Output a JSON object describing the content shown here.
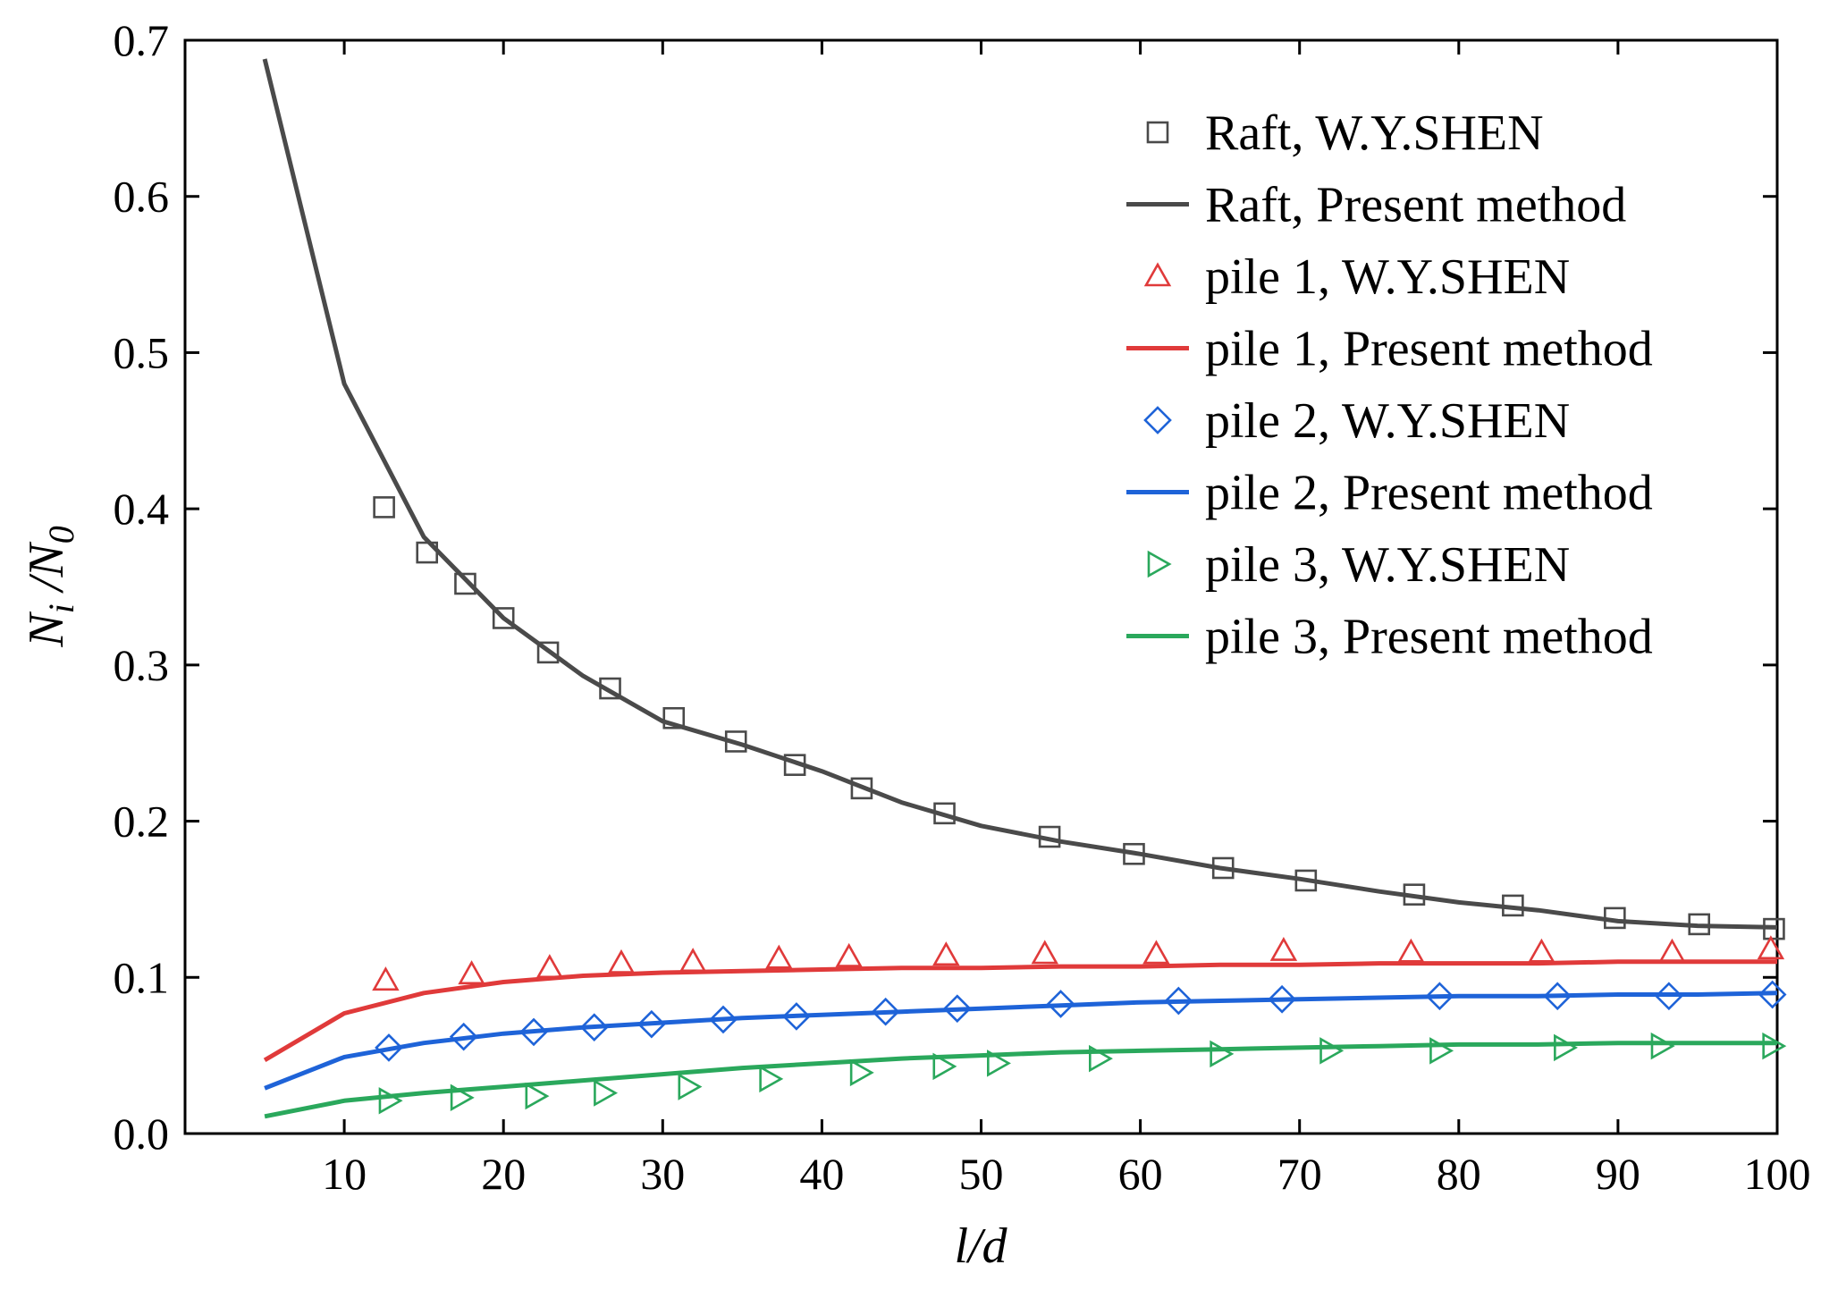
{
  "chart_data": {
    "type": "line",
    "title": "",
    "xlabel": "l/d",
    "ylabel": "N_i /N_0",
    "ylabel_parts": {
      "n1": "N",
      "sub1": "i",
      "slash": " /",
      "n2": "N",
      "sub2": "0"
    },
    "xlim": [
      0,
      100
    ],
    "ylim": [
      0,
      0.7
    ],
    "xticks": [
      10,
      20,
      30,
      40,
      50,
      60,
      70,
      80,
      90,
      100
    ],
    "yticks": [
      0.0,
      0.1,
      0.2,
      0.3,
      0.4,
      0.5,
      0.6,
      0.7
    ],
    "xtick_labels": [
      "10",
      "20",
      "30",
      "40",
      "50",
      "60",
      "70",
      "80",
      "90",
      "100"
    ],
    "ytick_labels": [
      "0.0",
      "0.1",
      "0.2",
      "0.3",
      "0.4",
      "0.5",
      "0.6",
      "0.7"
    ],
    "grid": false,
    "legend_position": "top-right",
    "series": [
      {
        "name": "Raft, W.Y.SHEN",
        "kind": "scatter",
        "marker": "square",
        "color": "#4a4a4a",
        "x": [
          12.5,
          15.2,
          17.6,
          20,
          22.8,
          26.7,
          30.7,
          34.6,
          38.3,
          42.5,
          47.7,
          54.3,
          59.6,
          65.2,
          70.4,
          77.2,
          83.4,
          89.8,
          95.1,
          99.8
        ],
        "y": [
          0.401,
          0.372,
          0.352,
          0.33,
          0.308,
          0.285,
          0.266,
          0.251,
          0.236,
          0.221,
          0.205,
          0.19,
          0.179,
          0.17,
          0.162,
          0.153,
          0.146,
          0.138,
          0.134,
          0.131
        ]
      },
      {
        "name": "Raft, Present method",
        "kind": "line",
        "color": "#4a4a4a",
        "x": [
          5,
          10,
          15,
          20,
          25,
          30,
          35,
          40,
          45,
          50,
          55,
          60,
          65,
          70,
          75,
          80,
          85,
          90,
          95,
          100
        ],
        "y": [
          0.688,
          0.48,
          0.382,
          0.33,
          0.293,
          0.264,
          0.249,
          0.232,
          0.212,
          0.197,
          0.187,
          0.179,
          0.17,
          0.163,
          0.155,
          0.148,
          0.143,
          0.136,
          0.133,
          0.132
        ]
      },
      {
        "name": "pile 1, W.Y.SHEN",
        "kind": "scatter",
        "marker": "triangle",
        "color": "#e03a3a",
        "x": [
          12.6,
          18,
          22.9,
          27.4,
          31.9,
          37.3,
          41.7,
          47.8,
          54,
          61,
          69,
          77,
          85.2,
          93.4,
          99.6
        ],
        "y": [
          0.098,
          0.102,
          0.106,
          0.109,
          0.11,
          0.112,
          0.113,
          0.114,
          0.115,
          0.115,
          0.117,
          0.116,
          0.116,
          0.116,
          0.118
        ]
      },
      {
        "name": "pile 1, Present method",
        "kind": "line",
        "color": "#e03a3a",
        "x": [
          5,
          10,
          15,
          20,
          25,
          30,
          35,
          40,
          45,
          50,
          55,
          60,
          65,
          70,
          75,
          80,
          85,
          90,
          95,
          100
        ],
        "y": [
          0.047,
          0.077,
          0.09,
          0.097,
          0.101,
          0.103,
          0.104,
          0.105,
          0.106,
          0.106,
          0.107,
          0.107,
          0.108,
          0.108,
          0.109,
          0.109,
          0.109,
          0.11,
          0.11,
          0.11
        ]
      },
      {
        "name": "pile 2, W.Y.SHEN",
        "kind": "scatter",
        "marker": "diamond",
        "color": "#1e63d8",
        "x": [
          12.8,
          17.5,
          21.9,
          25.7,
          29.3,
          33.8,
          38.4,
          44,
          48.5,
          55,
          62.4,
          68.9,
          78.8,
          86.2,
          93.2,
          99.7
        ],
        "y": [
          0.055,
          0.062,
          0.065,
          0.068,
          0.07,
          0.073,
          0.075,
          0.078,
          0.08,
          0.083,
          0.085,
          0.086,
          0.088,
          0.088,
          0.088,
          0.089
        ]
      },
      {
        "name": "pile 2, Present method",
        "kind": "line",
        "color": "#1e63d8",
        "x": [
          5,
          10,
          15,
          20,
          25,
          30,
          35,
          40,
          45,
          50,
          55,
          60,
          65,
          70,
          75,
          80,
          85,
          90,
          95,
          100
        ],
        "y": [
          0.029,
          0.049,
          0.058,
          0.064,
          0.068,
          0.071,
          0.074,
          0.076,
          0.078,
          0.08,
          0.082,
          0.084,
          0.085,
          0.086,
          0.087,
          0.088,
          0.088,
          0.089,
          0.089,
          0.09
        ]
      },
      {
        "name": "pile 3, W.Y.SHEN",
        "kind": "scatter",
        "marker": "triangle-right",
        "color": "#2aa85c",
        "x": [
          12.8,
          17.3,
          22,
          26.3,
          31.6,
          36.7,
          42.4,
          47.6,
          51,
          57.4,
          65,
          71.9,
          78.8,
          86.6,
          92.7,
          99.7
        ],
        "y": [
          0.021,
          0.023,
          0.024,
          0.026,
          0.03,
          0.035,
          0.039,
          0.043,
          0.045,
          0.048,
          0.051,
          0.053,
          0.053,
          0.055,
          0.056,
          0.056
        ]
      },
      {
        "name": "pile 3, Present method",
        "kind": "line",
        "color": "#2aa85c",
        "x": [
          5,
          10,
          15,
          20,
          25,
          30,
          35,
          40,
          45,
          50,
          55,
          60,
          65,
          70,
          75,
          80,
          85,
          90,
          95,
          100
        ],
        "y": [
          0.011,
          0.021,
          0.026,
          0.03,
          0.034,
          0.038,
          0.042,
          0.045,
          0.048,
          0.05,
          0.052,
          0.053,
          0.054,
          0.055,
          0.056,
          0.057,
          0.057,
          0.058,
          0.058,
          0.058
        ]
      }
    ]
  }
}
